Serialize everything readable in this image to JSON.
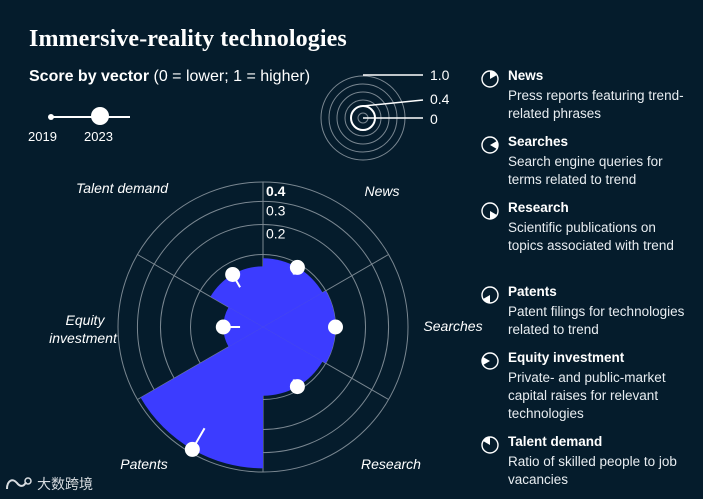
{
  "title": "Immersive-reality technologies",
  "subtitle": {
    "bold": "Score by vector",
    "rest": " (0 = lower; 1 = higher)"
  },
  "year_legend": {
    "start": "2019",
    "end": "2023"
  },
  "colors": {
    "background": "#051c2c",
    "fill": "#3c3cff",
    "grid": "#7a8791",
    "text": "#ffffff"
  },
  "key": {
    "labels": [
      "1.0",
      "0.4",
      "0"
    ]
  },
  "vectors": [
    {
      "name": "News",
      "icon": "news-icon",
      "desc": "Press reports featuring trend-related phrases"
    },
    {
      "name": "Searches",
      "icon": "searches-icon",
      "desc": "Search engine queries for terms related to trend"
    },
    {
      "name": "Research",
      "icon": "research-icon",
      "desc": "Scientific publications on topics associated with trend"
    },
    {
      "name": "Patents",
      "icon": "patents-icon",
      "desc": "Patent filings for technologies related to trend"
    },
    {
      "name": "Equity investment",
      "icon": "equity-icon",
      "desc": "Private- and public-market capital raises for relevant technologies"
    },
    {
      "name": "Talent demand",
      "icon": "talent-icon",
      "desc": "Ratio of skilled people to job vacancies"
    }
  ],
  "chart_data": {
    "type": "radial",
    "title": "Immersive-reality technologies",
    "subtitle": "Score by vector (0 = lower; 1 = higher)",
    "categories": [
      "News",
      "Searches",
      "Research",
      "Patents",
      "Equity investment",
      "Talent demand"
    ],
    "axis_labels": [
      "Talent demand",
      "News",
      "Searches",
      "Research",
      "Patents",
      "Equity investment"
    ],
    "ticks": [
      "0.4",
      "0.3",
      "0.2"
    ],
    "scale_max": 0.4,
    "series": [
      {
        "name": "2023",
        "values": [
          0.09,
          0.1,
          0.09,
          0.38,
          0.03,
          0.07
        ]
      },
      {
        "name": "2019",
        "values": [
          0.07,
          0.1,
          0.07,
          0.26,
          0.01,
          0.04
        ]
      }
    ]
  },
  "watermark": "大数跨境"
}
